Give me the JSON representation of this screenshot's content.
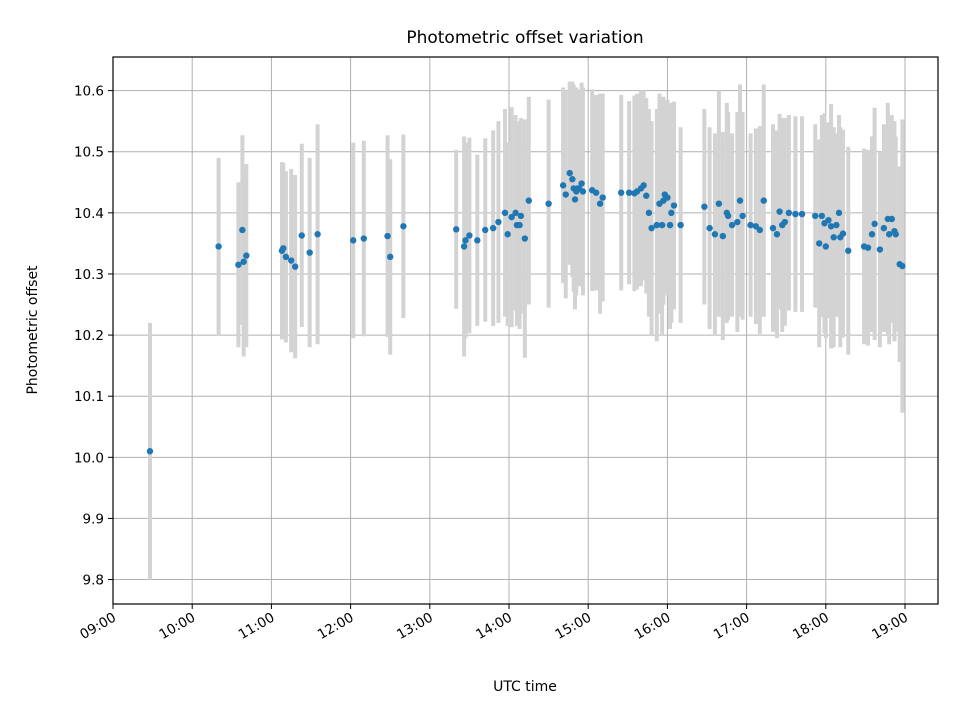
{
  "chart_data": {
    "type": "scatter",
    "title": "Photometric offset variation",
    "xlabel": "UTC time",
    "ylabel": "Photometric offset",
    "xlim": [
      "09:00",
      "19:25"
    ],
    "ylim": [
      9.76,
      10.655
    ],
    "grid": true,
    "x_ticks": [
      "09:00",
      "10:00",
      "11:00",
      "12:00",
      "13:00",
      "14:00",
      "15:00",
      "16:00",
      "17:00",
      "18:00",
      "19:00"
    ],
    "y_ticks": [
      "9.8",
      "9.9",
      "10.0",
      "10.1",
      "10.2",
      "10.3",
      "10.4",
      "10.5",
      "10.6"
    ],
    "marker_color": "#1f77b4",
    "errorbar_color": "#d3d3d3",
    "x": [
      "09:28",
      "10:20",
      "10:35",
      "10:38",
      "10:39",
      "10:41",
      "11:08",
      "11:09",
      "11:11",
      "11:15",
      "11:18",
      "11:23",
      "11:29",
      "11:35",
      "12:02",
      "12:10",
      "12:28",
      "12:30",
      "12:40",
      "13:20",
      "13:26",
      "13:27",
      "13:30",
      "13:36",
      "13:42",
      "13:48",
      "13:52",
      "13:57",
      "13:59",
      "14:02",
      "14:05",
      "14:06",
      "14:08",
      "14:09",
      "14:12",
      "14:15",
      "14:30",
      "14:41",
      "14:43",
      "14:46",
      "14:48",
      "14:49",
      "14:50",
      "14:51",
      "14:52",
      "14:53",
      "14:55",
      "14:56",
      "15:03",
      "15:06",
      "15:09",
      "15:11",
      "15:25",
      "15:31",
      "15:35",
      "15:37",
      "15:40",
      "15:42",
      "15:44",
      "15:46",
      "15:48",
      "15:52",
      "15:54",
      "15:56",
      "15:57",
      "15:58",
      "16:00",
      "16:02",
      "16:03",
      "16:05",
      "16:10",
      "16:28",
      "16:32",
      "16:36",
      "16:39",
      "16:42",
      "16:45",
      "16:46",
      "16:49",
      "16:53",
      "16:55",
      "16:57",
      "17:03",
      "17:07",
      "17:10",
      "17:13",
      "17:20",
      "17:23",
      "17:25",
      "17:27",
      "17:29",
      "17:32",
      "17:37",
      "17:42",
      "17:52",
      "17:55",
      "17:57",
      "17:59",
      "18:00",
      "18:02",
      "18:04",
      "18:06",
      "18:08",
      "18:10",
      "18:11",
      "18:13",
      "18:17",
      "18:29",
      "18:32",
      "18:35",
      "18:37",
      "18:41",
      "18:44",
      "18:47",
      "18:48",
      "18:50",
      "18:52",
      "18:53",
      "18:56",
      "18:58"
    ],
    "y": [
      10.01,
      10.345,
      10.315,
      10.372,
      10.32,
      10.33,
      10.338,
      10.342,
      10.328,
      10.322,
      10.312,
      10.363,
      10.335,
      10.365,
      10.355,
      10.358,
      10.362,
      10.328,
      10.378,
      10.373,
      10.345,
      10.355,
      10.363,
      10.355,
      10.372,
      10.375,
      10.385,
      10.4,
      10.365,
      10.393,
      10.4,
      10.38,
      10.38,
      10.395,
      10.358,
      10.42,
      10.415,
      10.445,
      10.43,
      10.465,
      10.455,
      10.44,
      10.422,
      10.435,
      10.44,
      10.44,
      10.448,
      10.435,
      10.437,
      10.433,
      10.415,
      10.425,
      10.433,
      10.433,
      10.432,
      10.435,
      10.44,
      10.445,
      10.428,
      10.4,
      10.375,
      10.38,
      10.415,
      10.38,
      10.42,
      10.43,
      10.425,
      10.38,
      10.4,
      10.412,
      10.38,
      10.41,
      10.375,
      10.365,
      10.415,
      10.362,
      10.4,
      10.395,
      10.38,
      10.385,
      10.42,
      10.395,
      10.38,
      10.378,
      10.372,
      10.42,
      10.375,
      10.365,
      10.402,
      10.38,
      10.385,
      10.4,
      10.398,
      10.398,
      10.395,
      10.35,
      10.395,
      10.383,
      10.345,
      10.388,
      10.378,
      10.36,
      10.38,
      10.4,
      10.36,
      10.366,
      10.338,
      10.345,
      10.343,
      10.365,
      10.382,
      10.34,
      10.375,
      10.39,
      10.365,
      10.39,
      10.37,
      10.365,
      10.316,
      10.313
    ],
    "err": [
      0.21,
      0.145,
      0.135,
      0.155,
      0.155,
      0.15,
      0.145,
      0.14,
      0.14,
      0.15,
      0.15,
      0.15,
      0.155,
      0.18,
      0.16,
      0.16,
      0.165,
      0.16,
      0.15,
      0.13,
      0.18,
      0.16,
      0.16,
      0.14,
      0.15,
      0.16,
      0.165,
      0.17,
      0.15,
      0.18,
      0.16,
      0.165,
      0.17,
      0.16,
      0.195,
      0.17,
      0.17,
      0.16,
      0.17,
      0.15,
      0.16,
      0.17,
      0.18,
      0.17,
      0.16,
      0.16,
      0.165,
      0.17,
      0.165,
      0.16,
      0.18,
      0.17,
      0.16,
      0.15,
      0.16,
      0.16,
      0.16,
      0.155,
      0.16,
      0.17,
      0.175,
      0.19,
      0.18,
      0.18,
      0.17,
      0.15,
      0.16,
      0.17,
      0.18,
      0.17,
      0.16,
      0.16,
      0.165,
      0.165,
      0.185,
      0.17,
      0.18,
      0.17,
      0.15,
      0.18,
      0.19,
      0.17,
      0.15,
      0.16,
      0.17,
      0.19,
      0.17,
      0.17,
      0.16,
      0.175,
      0.17,
      0.16,
      0.16,
      0.16,
      0.15,
      0.17,
      0.165,
      0.18,
      0.15,
      0.16,
      0.2,
      0.18,
      0.15,
      0.16,
      0.18,
      0.17,
      0.17,
      0.16,
      0.16,
      0.16,
      0.19,
      0.16,
      0.17,
      0.19,
      0.18,
      0.17,
      0.18,
      0.16,
      0.16,
      0.24
    ]
  }
}
